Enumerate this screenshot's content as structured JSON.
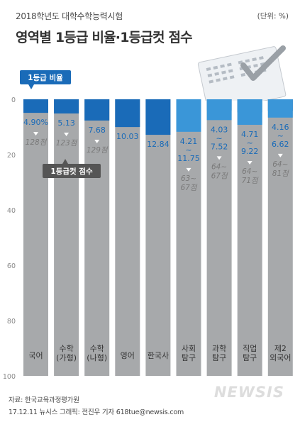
{
  "header": {
    "subtitle": "2018학년도 대학수학능력시험",
    "title": "영역별 1등급 비율·1등급컷 점수",
    "unit": "(단위: %)"
  },
  "legend": {
    "ratio_label": "1등급 비율",
    "cut_label": "1등급컷 점수"
  },
  "footer": {
    "source": "자료: 한국교육과정평가원",
    "credit": "17.12.11 뉴시스 그래픽: 전진우 기자 618tue@newsis.com",
    "watermark": "NEWSIS"
  },
  "colors": {
    "ratio_bar": "#1a6bb8",
    "ratio_bar_light": "#3a96d8",
    "rest_bar": "#a7a9ab",
    "value_text": "#1a6bb8",
    "cut_text": "#7a7a7a",
    "legend_ratio_bg": "#1a6bb8",
    "legend_cut_bg": "#555555"
  },
  "chart_data": {
    "type": "bar",
    "stacked": true,
    "title": "영역별 1등급 비율·1등급컷 점수",
    "ylim": [
      0,
      100
    ],
    "yticks": [
      0,
      20,
      40,
      60,
      80,
      100
    ],
    "y_inverted": true,
    "grid": false,
    "categories": [
      "국어",
      "수학\n(가형)",
      "수학\n(나형)",
      "영어",
      "한국사",
      "사회\n탐구",
      "과학\n탐구",
      "직업\n탐구",
      "제2\n외국어"
    ],
    "series": [
      {
        "name": "1등급 비율",
        "values_min": [
          4.9,
          5.13,
          7.68,
          10.03,
          12.84,
          4.21,
          4.03,
          4.71,
          4.16
        ],
        "values_max": [
          4.9,
          5.13,
          7.68,
          10.03,
          12.84,
          11.75,
          7.52,
          9.22,
          6.62
        ],
        "labels": [
          "4.90%",
          "5.13",
          "7.68",
          "10.03",
          "12.84",
          "4.21\n~\n11.75",
          "4.03\n~\n7.52",
          "4.71\n~\n9.22",
          "4.16\n~\n6.62"
        ]
      },
      {
        "name": "1등급컷 점수",
        "labels": [
          "128점",
          "123점",
          "129점",
          "",
          "",
          "63~\n67점",
          "64~\n67점",
          "64~\n71점",
          "64~\n81점"
        ]
      }
    ]
  }
}
